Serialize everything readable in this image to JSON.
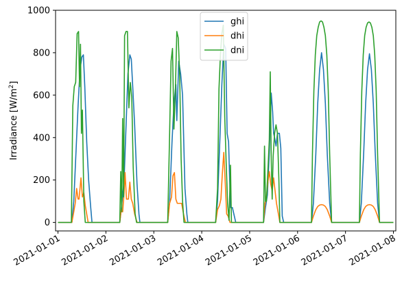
{
  "chart_data": {
    "type": "line",
    "title": "",
    "xlabel": "",
    "ylabel": "Irradiance [W/m",
    "ylabel_sup": "2",
    "ylabel_close": "]",
    "ylim": [
      -40,
      1000
    ],
    "xlim": [
      -0.05,
      7.05
    ],
    "x_tick_values": [
      0,
      1,
      2,
      3,
      4,
      5,
      6,
      7
    ],
    "x_tick_labels": [
      "2021-01-01",
      "2021-01-02",
      "2021-01-03",
      "2021-01-04",
      "2021-01-05",
      "2021-01-06",
      "2021-01-07",
      "2021-01-08"
    ],
    "y_tick_values": [
      0,
      200,
      400,
      600,
      800,
      1000
    ],
    "y_tick_labels": [
      "0",
      "200",
      "400",
      "600",
      "800",
      "1000"
    ],
    "legend_position": "top-center",
    "series": [
      {
        "name": "ghi",
        "color": "#1f77b4",
        "points": [
          [
            0,
            0
          ],
          [
            0.25,
            0
          ],
          [
            0.29,
            0
          ],
          [
            0.33,
            100
          ],
          [
            0.38,
            350
          ],
          [
            0.42,
            550
          ],
          [
            0.46,
            720
          ],
          [
            0.5,
            780
          ],
          [
            0.53,
            790
          ],
          [
            0.56,
            640
          ],
          [
            0.6,
            380
          ],
          [
            0.64,
            200
          ],
          [
            0.68,
            80
          ],
          [
            0.71,
            0
          ],
          [
            1.0,
            0
          ],
          [
            1.25,
            0
          ],
          [
            1.29,
            0
          ],
          [
            1.33,
            80
          ],
          [
            1.38,
            200
          ],
          [
            1.42,
            450
          ],
          [
            1.46,
            700
          ],
          [
            1.5,
            790
          ],
          [
            1.53,
            770
          ],
          [
            1.56,
            640
          ],
          [
            1.6,
            460
          ],
          [
            1.65,
            180
          ],
          [
            1.69,
            40
          ],
          [
            1.71,
            0
          ],
          [
            2.0,
            0
          ],
          [
            2.25,
            0
          ],
          [
            2.29,
            0
          ],
          [
            2.33,
            100
          ],
          [
            2.38,
            380
          ],
          [
            2.42,
            560
          ],
          [
            2.46,
            650
          ],
          [
            2.48,
            480
          ],
          [
            2.52,
            760
          ],
          [
            2.56,
            700
          ],
          [
            2.6,
            600
          ],
          [
            2.65,
            160
          ],
          [
            2.69,
            40
          ],
          [
            2.71,
            0
          ],
          [
            3.0,
            0
          ],
          [
            3.25,
            0
          ],
          [
            3.29,
            0
          ],
          [
            3.33,
            100
          ],
          [
            3.38,
            400
          ],
          [
            3.42,
            650
          ],
          [
            3.46,
            840
          ],
          [
            3.5,
            820
          ],
          [
            3.53,
            420
          ],
          [
            3.56,
            380
          ],
          [
            3.6,
            70
          ],
          [
            3.64,
            70
          ],
          [
            3.68,
            30
          ],
          [
            3.71,
            0
          ],
          [
            4.0,
            0
          ],
          [
            4.25,
            0
          ],
          [
            4.29,
            0
          ],
          [
            4.33,
            70
          ],
          [
            4.37,
            130
          ],
          [
            4.41,
            330
          ],
          [
            4.45,
            610
          ],
          [
            4.48,
            520
          ],
          [
            4.5,
            420
          ],
          [
            4.52,
            400
          ],
          [
            4.55,
            360
          ],
          [
            4.58,
            420
          ],
          [
            4.62,
            420
          ],
          [
            4.65,
            350
          ],
          [
            4.68,
            30
          ],
          [
            4.71,
            0
          ],
          [
            5.0,
            0
          ],
          [
            5.25,
            0
          ],
          [
            5.29,
            0
          ],
          [
            5.33,
            90
          ],
          [
            5.38,
            320
          ],
          [
            5.42,
            560
          ],
          [
            5.46,
            720
          ],
          [
            5.5,
            800
          ],
          [
            5.54,
            720
          ],
          [
            5.58,
            560
          ],
          [
            5.62,
            320
          ],
          [
            5.67,
            90
          ],
          [
            5.71,
            0
          ],
          [
            6.0,
            0
          ],
          [
            6.25,
            0
          ],
          [
            6.29,
            0
          ],
          [
            6.33,
            90
          ],
          [
            6.38,
            330
          ],
          [
            6.42,
            560
          ],
          [
            6.46,
            720
          ],
          [
            6.5,
            795
          ],
          [
            6.54,
            720
          ],
          [
            6.58,
            560
          ],
          [
            6.62,
            330
          ],
          [
            6.67,
            90
          ],
          [
            6.71,
            0
          ],
          [
            7.0,
            0
          ]
        ]
      },
      {
        "name": "dhi",
        "color": "#ff7f0e",
        "points": [
          [
            0,
            0
          ],
          [
            0.25,
            0
          ],
          [
            0.29,
            0
          ],
          [
            0.33,
            50
          ],
          [
            0.36,
            90
          ],
          [
            0.39,
            160
          ],
          [
            0.42,
            110
          ],
          [
            0.44,
            110
          ],
          [
            0.48,
            210
          ],
          [
            0.51,
            120
          ],
          [
            0.54,
            140
          ],
          [
            0.57,
            80
          ],
          [
            0.6,
            40
          ],
          [
            0.63,
            0
          ],
          [
            1.0,
            0
          ],
          [
            1.25,
            0
          ],
          [
            1.29,
            0
          ],
          [
            1.32,
            60
          ],
          [
            1.35,
            50
          ],
          [
            1.38,
            140
          ],
          [
            1.4,
            235
          ],
          [
            1.43,
            110
          ],
          [
            1.47,
            110
          ],
          [
            1.5,
            190
          ],
          [
            1.53,
            110
          ],
          [
            1.56,
            90
          ],
          [
            1.6,
            40
          ],
          [
            1.65,
            0
          ],
          [
            2.0,
            0
          ],
          [
            2.25,
            0
          ],
          [
            2.29,
            0
          ],
          [
            2.33,
            90
          ],
          [
            2.37,
            120
          ],
          [
            2.4,
            220
          ],
          [
            2.43,
            235
          ],
          [
            2.46,
            110
          ],
          [
            2.49,
            90
          ],
          [
            2.52,
            90
          ],
          [
            2.55,
            90
          ],
          [
            2.58,
            90
          ],
          [
            2.62,
            40
          ],
          [
            2.66,
            0
          ],
          [
            3.0,
            0
          ],
          [
            3.25,
            0
          ],
          [
            3.29,
            0
          ],
          [
            3.33,
            60
          ],
          [
            3.37,
            80
          ],
          [
            3.4,
            110
          ],
          [
            3.43,
            230
          ],
          [
            3.46,
            330
          ],
          [
            3.49,
            190
          ],
          [
            3.52,
            40
          ],
          [
            3.55,
            30
          ],
          [
            3.59,
            0
          ],
          [
            4.0,
            0
          ],
          [
            4.25,
            0
          ],
          [
            4.29,
            0
          ],
          [
            4.32,
            90
          ],
          [
            4.35,
            120
          ],
          [
            4.38,
            190
          ],
          [
            4.41,
            240
          ],
          [
            4.44,
            180
          ],
          [
            4.47,
            150
          ],
          [
            4.5,
            210
          ],
          [
            4.53,
            150
          ],
          [
            4.56,
            90
          ],
          [
            4.6,
            40
          ],
          [
            4.63,
            0
          ],
          [
            5.0,
            0
          ],
          [
            5.25,
            0
          ],
          [
            5.29,
            0
          ],
          [
            5.33,
            30
          ],
          [
            5.38,
            60
          ],
          [
            5.42,
            75
          ],
          [
            5.46,
            82
          ],
          [
            5.5,
            84
          ],
          [
            5.54,
            82
          ],
          [
            5.58,
            75
          ],
          [
            5.62,
            60
          ],
          [
            5.67,
            30
          ],
          [
            5.71,
            0
          ],
          [
            6.0,
            0
          ],
          [
            6.25,
            0
          ],
          [
            6.29,
            0
          ],
          [
            6.33,
            30
          ],
          [
            6.38,
            60
          ],
          [
            6.42,
            75
          ],
          [
            6.46,
            82
          ],
          [
            6.5,
            84
          ],
          [
            6.54,
            82
          ],
          [
            6.58,
            75
          ],
          [
            6.62,
            60
          ],
          [
            6.67,
            30
          ],
          [
            6.71,
            0
          ],
          [
            7.0,
            0
          ]
        ]
      },
      {
        "name": "dni",
        "color": "#2ca02c",
        "points": [
          [
            0,
            0
          ],
          [
            0.25,
            0
          ],
          [
            0.28,
            0
          ],
          [
            0.31,
            550
          ],
          [
            0.34,
            640
          ],
          [
            0.37,
            660
          ],
          [
            0.4,
            890
          ],
          [
            0.43,
            900
          ],
          [
            0.45,
            640
          ],
          [
            0.47,
            840
          ],
          [
            0.49,
            420
          ],
          [
            0.51,
            530
          ],
          [
            0.54,
            100
          ],
          [
            0.57,
            0
          ],
          [
            1.0,
            0
          ],
          [
            1.25,
            0
          ],
          [
            1.29,
            0
          ],
          [
            1.31,
            240
          ],
          [
            1.33,
            50
          ],
          [
            1.35,
            490
          ],
          [
            1.37,
            120
          ],
          [
            1.39,
            880
          ],
          [
            1.42,
            900
          ],
          [
            1.45,
            900
          ],
          [
            1.48,
            540
          ],
          [
            1.51,
            660
          ],
          [
            1.54,
            590
          ],
          [
            1.57,
            260
          ],
          [
            1.61,
            40
          ],
          [
            1.64,
            0
          ],
          [
            2.0,
            0
          ],
          [
            2.25,
            0
          ],
          [
            2.29,
            0
          ],
          [
            2.33,
            420
          ],
          [
            2.36,
            760
          ],
          [
            2.39,
            820
          ],
          [
            2.42,
            440
          ],
          [
            2.45,
            620
          ],
          [
            2.48,
            900
          ],
          [
            2.51,
            870
          ],
          [
            2.54,
            690
          ],
          [
            2.57,
            300
          ],
          [
            2.6,
            100
          ],
          [
            2.63,
            0
          ],
          [
            3.0,
            0
          ],
          [
            3.25,
            0
          ],
          [
            3.29,
            0
          ],
          [
            3.33,
            160
          ],
          [
            3.36,
            630
          ],
          [
            3.39,
            790
          ],
          [
            3.42,
            890
          ],
          [
            3.45,
            930
          ],
          [
            3.48,
            500
          ],
          [
            3.51,
            280
          ],
          [
            3.54,
            90
          ],
          [
            3.57,
            10
          ],
          [
            3.6,
            270
          ],
          [
            3.62,
            0
          ],
          [
            4.0,
            0
          ],
          [
            4.25,
            0
          ],
          [
            4.29,
            0
          ],
          [
            4.31,
            360
          ],
          [
            4.33,
            100
          ],
          [
            4.35,
            100
          ],
          [
            4.38,
            240
          ],
          [
            4.41,
            390
          ],
          [
            4.43,
            710
          ],
          [
            4.45,
            300
          ],
          [
            4.47,
            110
          ],
          [
            4.49,
            310
          ],
          [
            4.52,
            420
          ],
          [
            4.55,
            460
          ],
          [
            4.58,
            420
          ],
          [
            4.61,
            200
          ],
          [
            4.63,
            0
          ],
          [
            5.0,
            0
          ],
          [
            5.25,
            0
          ],
          [
            5.29,
            0
          ],
          [
            5.31,
            320
          ],
          [
            5.34,
            620
          ],
          [
            5.37,
            790
          ],
          [
            5.4,
            880
          ],
          [
            5.43,
            920
          ],
          [
            5.46,
            945
          ],
          [
            5.49,
            950
          ],
          [
            5.52,
            945
          ],
          [
            5.55,
            920
          ],
          [
            5.58,
            880
          ],
          [
            5.61,
            790
          ],
          [
            5.64,
            620
          ],
          [
            5.67,
            320
          ],
          [
            5.71,
            0
          ],
          [
            6.0,
            0
          ],
          [
            6.25,
            0
          ],
          [
            6.29,
            0
          ],
          [
            6.31,
            320
          ],
          [
            6.34,
            620
          ],
          [
            6.37,
            790
          ],
          [
            6.4,
            880
          ],
          [
            6.43,
            920
          ],
          [
            6.46,
            940
          ],
          [
            6.49,
            945
          ],
          [
            6.52,
            940
          ],
          [
            6.55,
            920
          ],
          [
            6.58,
            880
          ],
          [
            6.61,
            790
          ],
          [
            6.64,
            620
          ],
          [
            6.67,
            320
          ],
          [
            6.71,
            0
          ],
          [
            7.0,
            0
          ]
        ]
      }
    ]
  }
}
